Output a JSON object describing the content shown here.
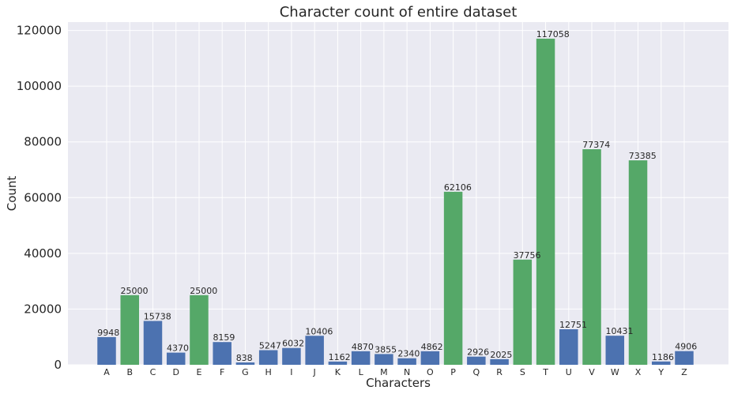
{
  "chart_data": {
    "type": "bar",
    "title": "Character count of entire dataset",
    "xlabel": "Characters",
    "ylabel": "Count",
    "ylim": [
      0,
      123000
    ],
    "yticks": [
      0,
      20000,
      40000,
      60000,
      80000,
      100000,
      120000
    ],
    "grid": true,
    "categories": [
      "A",
      "B",
      "C",
      "D",
      "E",
      "F",
      "G",
      "H",
      "I",
      "J",
      "K",
      "L",
      "M",
      "N",
      "O",
      "P",
      "Q",
      "R",
      "S",
      "T",
      "U",
      "V",
      "W",
      "X",
      "Y",
      "Z"
    ],
    "values": [
      9948,
      25000,
      15738,
      4370,
      25000,
      8159,
      838,
      5247,
      6032,
      10406,
      1162,
      4870,
      3855,
      2340,
      4862,
      62106,
      2926,
      2025,
      37756,
      117058,
      12751,
      77374,
      10431,
      73385,
      1186,
      4906
    ],
    "bar_colors": [
      "#4c72b0",
      "#55a868",
      "#4c72b0",
      "#4c72b0",
      "#55a868",
      "#4c72b0",
      "#4c72b0",
      "#4c72b0",
      "#4c72b0",
      "#4c72b0",
      "#4c72b0",
      "#4c72b0",
      "#4c72b0",
      "#4c72b0",
      "#4c72b0",
      "#55a868",
      "#4c72b0",
      "#4c72b0",
      "#55a868",
      "#55a868",
      "#4c72b0",
      "#55a868",
      "#4c72b0",
      "#55a868",
      "#4c72b0",
      "#4c72b0"
    ]
  },
  "colors": {
    "plot_background": "#eaeaf2",
    "grid": "#ffffff",
    "blue": "#4c72b0",
    "green": "#55a868"
  }
}
